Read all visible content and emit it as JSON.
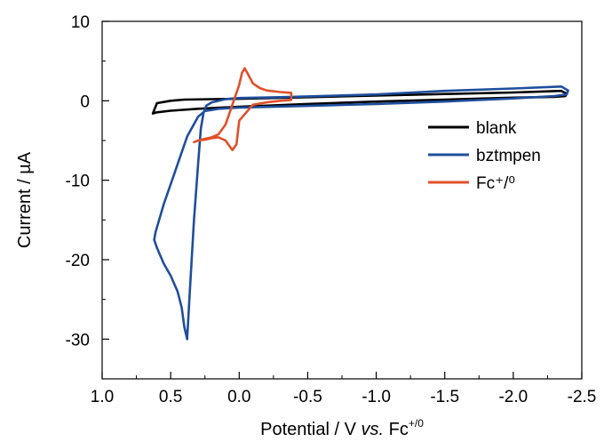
{
  "chart_data": {
    "type": "line",
    "xlabel": {
      "main": "Potential / V ",
      "italic": "vs.",
      "tail": " Fc",
      "sup": "+/0"
    },
    "ylabel": "Current / µA",
    "xlim": [
      1.0,
      -2.5
    ],
    "ylim": [
      -35,
      10
    ],
    "x_ticks": [
      1.0,
      0.5,
      0.0,
      -0.5,
      -1.0,
      -1.5,
      -2.0,
      -2.5
    ],
    "x_tick_labels": [
      "1.0",
      "0.5",
      "0.0",
      "-0.5",
      "-1.0",
      "-1.5",
      "-2.0",
      "-2.5"
    ],
    "y_ticks": [
      10,
      0,
      -10,
      -20,
      -30
    ],
    "y_tick_labels": [
      "10",
      "0",
      "-10",
      "-20",
      "-30"
    ],
    "grid": false,
    "legend_position": "right",
    "series": [
      {
        "name": "blank",
        "color": "#000000",
        "x": [
          0.63,
          0.6,
          0.5,
          0.4,
          0.2,
          0.0,
          -0.5,
          -1.0,
          -1.5,
          -2.0,
          -2.35,
          -2.39,
          -2.38,
          -2.3,
          -2.0,
          -1.5,
          -1.0,
          -0.5,
          0.0,
          0.3,
          0.5,
          0.6,
          0.63
        ],
        "y": [
          -1.6,
          -0.3,
          0.0,
          0.15,
          0.2,
          0.25,
          0.45,
          0.65,
          0.85,
          1.05,
          1.25,
          0.9,
          0.6,
          0.5,
          0.4,
          0.15,
          -0.1,
          -0.4,
          -0.75,
          -1.0,
          -1.25,
          -1.45,
          -1.6
        ]
      },
      {
        "name": "bztmpen",
        "color": "#1f4e9c",
        "x": [
          0.38,
          0.36,
          0.33,
          0.3,
          0.28,
          0.26,
          0.24,
          0.2,
          0.1,
          0.0,
          -0.3,
          -0.5,
          -1.0,
          -1.5,
          -2.0,
          -2.35,
          -2.4,
          -2.39,
          -2.3,
          -2.0,
          -1.5,
          -1.0,
          -0.5,
          0.0,
          0.15,
          0.25,
          0.3,
          0.38,
          0.45,
          0.55,
          0.61,
          0.62,
          0.6,
          0.55,
          0.5,
          0.45,
          0.42,
          0.4,
          0.38
        ],
        "y": [
          -30.0,
          -24.0,
          -15.0,
          -8.0,
          -3.5,
          -1.5,
          -0.6,
          -0.2,
          0.2,
          0.35,
          0.45,
          0.55,
          0.8,
          1.25,
          1.55,
          1.8,
          1.3,
          0.8,
          0.6,
          0.3,
          -0.1,
          -0.4,
          -0.65,
          -0.85,
          -1.0,
          -1.3,
          -2.0,
          -4.5,
          -8.0,
          -13.0,
          -16.5,
          -17.5,
          -18.5,
          -20.5,
          -22.0,
          -24.0,
          -26.0,
          -28.5,
          -30.0
        ]
      },
      {
        "name": "Fc⁺/⁰",
        "color": "#e0502a",
        "x": [
          0.33,
          0.3,
          0.25,
          0.2,
          0.15,
          0.1,
          0.05,
          0.0,
          -0.02,
          -0.04,
          -0.06,
          -0.1,
          -0.15,
          -0.2,
          -0.3,
          -0.38,
          -0.38,
          -0.3,
          -0.2,
          -0.1,
          0.0,
          0.02,
          0.05,
          0.1,
          0.15,
          0.2,
          0.25,
          0.3,
          0.33
        ],
        "y": [
          -5.2,
          -5.0,
          -4.8,
          -4.6,
          -4.2,
          -3.0,
          -0.5,
          2.0,
          3.5,
          4.1,
          3.5,
          2.2,
          1.6,
          1.3,
          1.1,
          1.0,
          0.1,
          0.0,
          -0.2,
          -0.5,
          -2.5,
          -5.5,
          -6.2,
          -5.0,
          -4.6,
          -4.7,
          -4.9,
          -5.0,
          -5.2
        ]
      }
    ]
  }
}
